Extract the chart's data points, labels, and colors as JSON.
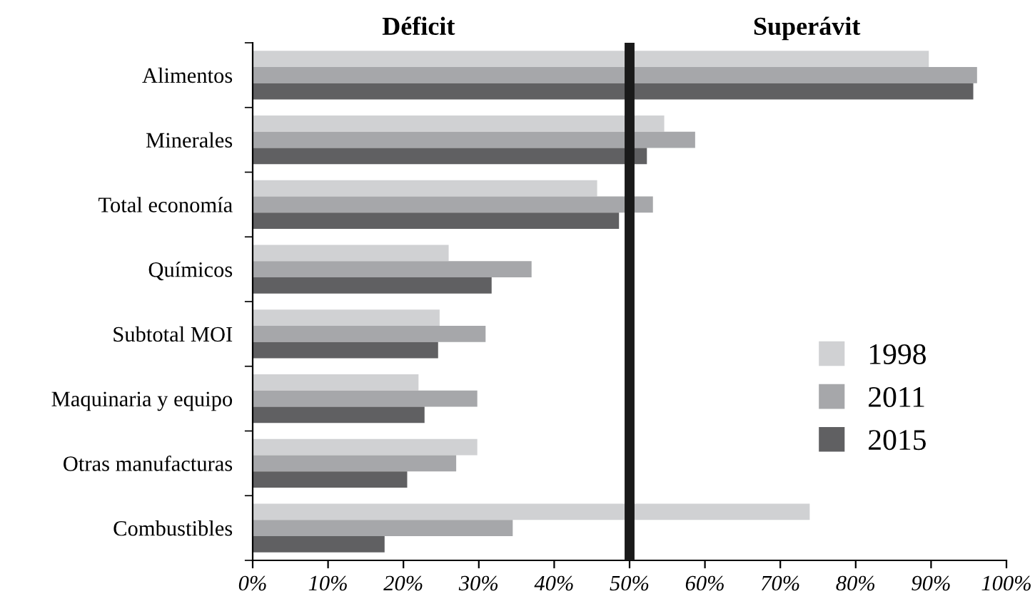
{
  "chart_data": {
    "type": "bar",
    "orientation": "horizontal",
    "categories": [
      "Alimentos",
      "Minerales",
      "Total economía",
      "Químicos",
      "Subtotal MOI",
      "Maquinaria y equipo",
      "Otras manufacturas",
      "Combustibles"
    ],
    "series": [
      {
        "name": "1998",
        "color": "#d0d1d3",
        "values": [
          89.7,
          54.6,
          45.7,
          26.0,
          24.8,
          22.0,
          29.8,
          73.9
        ]
      },
      {
        "name": "2011",
        "color": "#a6a7aa",
        "values": [
          96.1,
          58.7,
          53.1,
          37.0,
          30.9,
          29.8,
          27.0,
          34.5
        ]
      },
      {
        "name": "2015",
        "color": "#606062",
        "values": [
          95.6,
          52.3,
          48.6,
          31.7,
          24.6,
          22.8,
          20.5,
          17.5
        ]
      }
    ],
    "xlim": [
      0,
      100
    ],
    "xticks": [
      {
        "value": 0,
        "label": "0%"
      },
      {
        "value": 10,
        "label": "10%"
      },
      {
        "value": 20,
        "label": "20%"
      },
      {
        "value": 30,
        "label": "30%"
      },
      {
        "value": 40,
        "label": "40%"
      },
      {
        "value": 50,
        "label": "50%"
      },
      {
        "value": 60,
        "label": "60%"
      },
      {
        "value": 70,
        "label": "70%"
      },
      {
        "value": 80,
        "label": "80%"
      },
      {
        "value": 90,
        "label": "90%"
      },
      {
        "value": 100,
        "label": "100%"
      }
    ],
    "ref_lines": [
      {
        "axis": "x",
        "value": 50,
        "color": "#1a1a1a"
      }
    ],
    "annotations": [
      "Déficit",
      "Superávit"
    ],
    "legend": "bottom right",
    "grid": false
  }
}
